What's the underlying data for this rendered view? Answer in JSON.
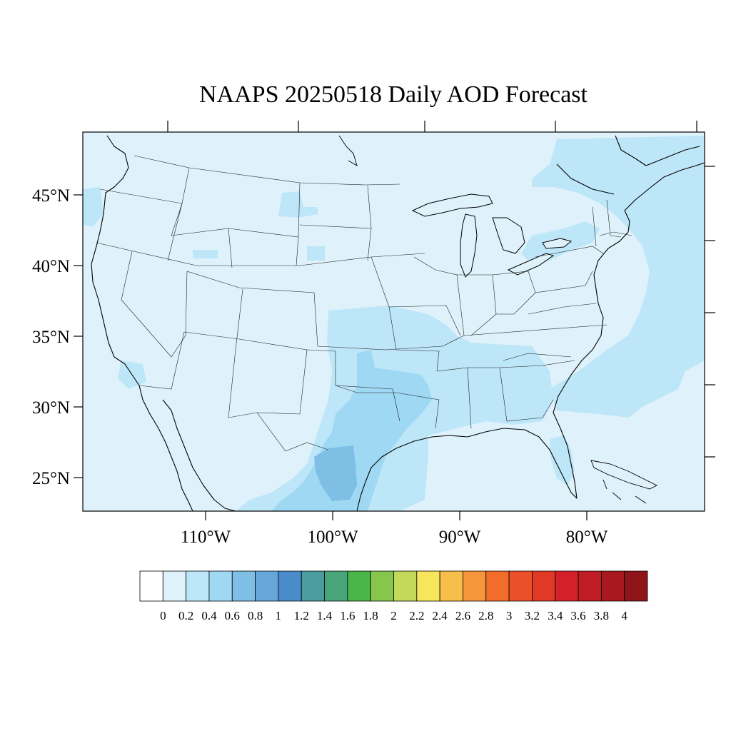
{
  "title": "NAAPS 20250518 Daily AOD Forecast",
  "map": {
    "variable": "AOD",
    "region": "Continental United States",
    "lon_range": [
      -119,
      -71
    ],
    "lat_range": [
      22.5,
      49.5
    ],
    "lat_ticks": [
      {
        "value": 45,
        "label": "45°N"
      },
      {
        "value": 40,
        "label": "40°N"
      },
      {
        "value": 35,
        "label": "35°N"
      },
      {
        "value": 30,
        "label": "30°N"
      },
      {
        "value": 25,
        "label": "25°N"
      }
    ],
    "lon_ticks": [
      {
        "value": -110,
        "label": "110°W"
      },
      {
        "value": -100,
        "label": "100°W"
      },
      {
        "value": -90,
        "label": "90°W"
      },
      {
        "value": -80,
        "label": "80°W"
      }
    ],
    "background_level": "0.2",
    "aod_regions": [
      {
        "name": "Texas / southern plains plume",
        "level": "0.4"
      },
      {
        "name": "South Texas core",
        "level": "0.6"
      },
      {
        "name": "Rio Grande maximum",
        "level": "0.8"
      },
      {
        "name": "Atlantic offshore band",
        "level": "0.4"
      },
      {
        "name": "Florida peninsula",
        "level": "0.4"
      }
    ]
  },
  "colorbar": {
    "labels": [
      "0",
      "0.2",
      "0.4",
      "0.6",
      "0.8",
      "1",
      "1.2",
      "1.4",
      "1.6",
      "1.8",
      "2",
      "2.2",
      "2.4",
      "2.6",
      "2.8",
      "3",
      "3.2",
      "3.4",
      "3.6",
      "3.8",
      "4"
    ],
    "colors": [
      "#ffffff",
      "#dff2fb",
      "#bde6f8",
      "#9fd8f3",
      "#7fbfe6",
      "#66a6d9",
      "#4a8cca",
      "#4a9c9f",
      "#48a57a",
      "#4ab548",
      "#86c64c",
      "#c4d85a",
      "#f7e65b",
      "#f8be4b",
      "#f6963b",
      "#f26c2a",
      "#eb5128",
      "#e03a27",
      "#d42029",
      "#bf1c25",
      "#a8191f",
      "#8e161b"
    ]
  }
}
